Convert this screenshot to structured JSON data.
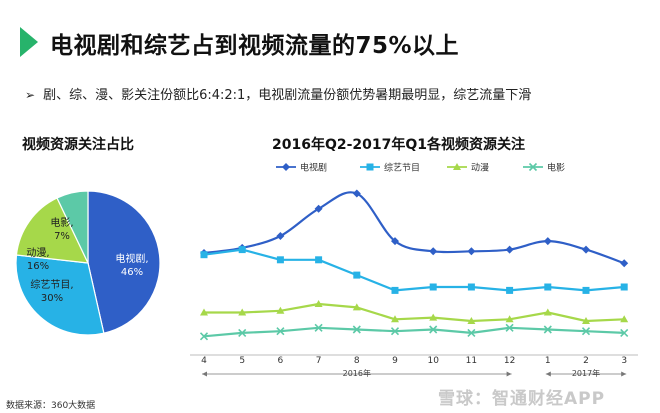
{
  "header": {
    "title": "电视剧和综艺占到视频流量的75%以上"
  },
  "bullet": {
    "arrow": "➢",
    "text": "剧、综、漫、影关注份额比6:4:2:1，电视剧流量份额优势暑期最明显，综艺流量下滑"
  },
  "footer": {
    "source": "数据来源：360大数据",
    "watermark": "雪球：智通财经APP"
  },
  "colors": {
    "tv": "#2f5fc7",
    "variety": "#27b2e6",
    "anime": "#a6d84a",
    "movie": "#5cc9a7",
    "accent": "#27b36b"
  },
  "chart_data": [
    {
      "type": "pie",
      "title": "视频资源关注占比",
      "slices": [
        {
          "label": "电视剧,",
          "value_label": "46%",
          "value": 46,
          "color": "#2f5fc7"
        },
        {
          "label": "综艺节目,",
          "value_label": "30%",
          "value": 30,
          "color": "#27b2e6"
        },
        {
          "label": "动漫,",
          "value_label": "16%",
          "value": 16,
          "color": "#a6d84a"
        },
        {
          "label": "电影,",
          "value_label": "7%",
          "value": 7,
          "color": "#5cc9a7"
        }
      ]
    },
    {
      "type": "line",
      "title": "2016年Q2-2017年Q1各视频资源关注",
      "categories": [
        "4",
        "5",
        "6",
        "7",
        "8",
        "9",
        "10",
        "11",
        "12",
        "1",
        "2",
        "3"
      ],
      "year_groups": [
        {
          "label": "2016年",
          "from": 0,
          "to": 8
        },
        {
          "label": "2017年",
          "from": 9,
          "to": 11
        }
      ],
      "legend_position": "top",
      "ylim": [
        0,
        100
      ],
      "series": [
        {
          "name": "电视剧",
          "color": "#2f5fc7",
          "marker": "diamond",
          "smooth": true,
          "values": [
            60,
            63,
            70,
            86,
            95,
            67,
            61,
            61,
            62,
            67,
            62,
            54
          ]
        },
        {
          "name": "综艺节目",
          "color": "#27b2e6",
          "marker": "square",
          "smooth": false,
          "values": [
            59,
            62,
            56,
            56,
            47,
            38,
            40,
            40,
            38,
            40,
            38,
            40
          ]
        },
        {
          "name": "动漫",
          "color": "#a6d84a",
          "marker": "triangle",
          "smooth": false,
          "values": [
            25,
            25,
            26,
            30,
            28,
            21,
            22,
            20,
            21,
            25,
            20,
            21
          ]
        },
        {
          "name": "电影",
          "color": "#5cc9a7",
          "marker": "x",
          "smooth": false,
          "values": [
            11,
            13,
            14,
            16,
            15,
            14,
            15,
            13,
            16,
            15,
            14,
            13
          ]
        }
      ]
    }
  ]
}
